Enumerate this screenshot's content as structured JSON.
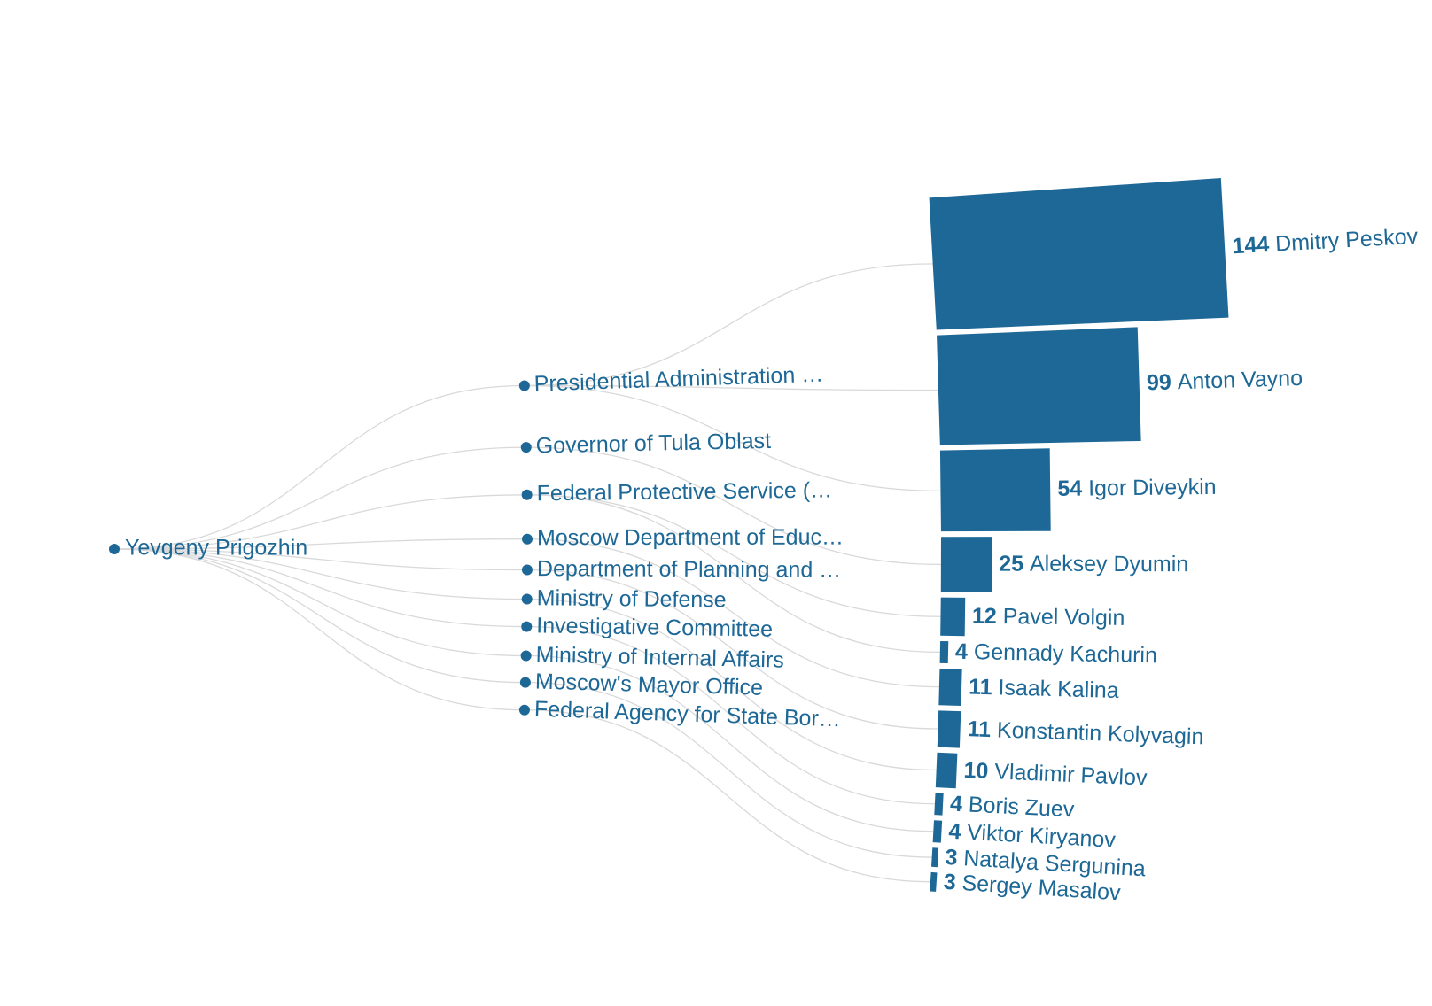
{
  "root": {
    "label": "Yevgeny Prigozhin"
  },
  "organizations": [
    {
      "label": "Presidential Administration …"
    },
    {
      "label": "Governor of Tula Oblast"
    },
    {
      "label": "Federal Protective Service (…"
    },
    {
      "label": "Moscow Department of Educ…"
    },
    {
      "label": "Department of Planning and …"
    },
    {
      "label": "Ministry of Defense"
    },
    {
      "label": "Investigative Committee"
    },
    {
      "label": "Ministry of Internal Affairs"
    },
    {
      "label": "Moscow's Mayor Office"
    },
    {
      "label": "Federal Agency for State Bor…"
    }
  ],
  "people": [
    {
      "name": "Dmitry Peskov",
      "value": 144,
      "org": 0
    },
    {
      "name": "Anton Vayno",
      "value": 99,
      "org": 0
    },
    {
      "name": "Igor Diveykin",
      "value": 54,
      "org": 0
    },
    {
      "name": "Aleksey Dyumin",
      "value": 25,
      "org": 1
    },
    {
      "name": "Pavel Volgin",
      "value": 12,
      "org": 2
    },
    {
      "name": "Gennady Kachurin",
      "value": 4,
      "org": 2
    },
    {
      "name": "Isaak Kalina",
      "value": 11,
      "org": 3
    },
    {
      "name": "Konstantin Kolyvagin",
      "value": 11,
      "org": 4
    },
    {
      "name": "Vladimir Pavlov",
      "value": 10,
      "org": 5
    },
    {
      "name": "Boris Zuev",
      "value": 4,
      "org": 6
    },
    {
      "name": "Viktor Kiryanov",
      "value": 4,
      "org": 7
    },
    {
      "name": "Natalya Sergunina",
      "value": 3,
      "org": 8
    },
    {
      "name": "Sergey Masalov",
      "value": 3,
      "org": 9
    }
  ],
  "colors": {
    "accent": "#1d6896",
    "link": "#d9d9d9"
  }
}
